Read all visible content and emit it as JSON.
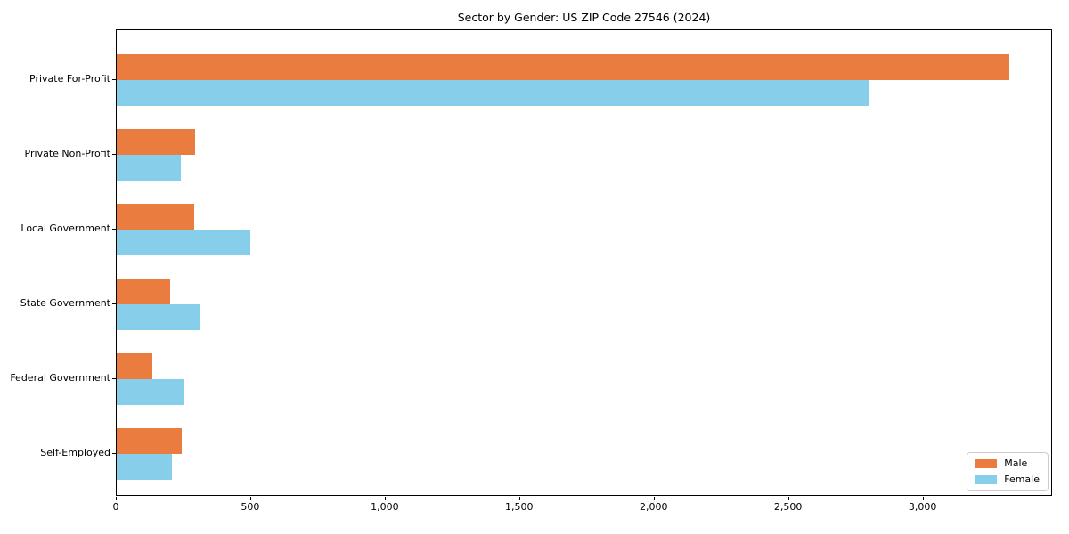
{
  "chart_data": {
    "type": "bar",
    "orientation": "horizontal",
    "title": "Sector by Gender: US ZIP Code 27546 (2024)",
    "categories": [
      "Private For-Profit",
      "Private Non-Profit",
      "Local Government",
      "State Government",
      "Federal Government",
      "Self-Employed"
    ],
    "series": [
      {
        "name": "Male",
        "color": "#E97C3E",
        "values": [
          3320,
          290,
          287,
          198,
          132,
          242
        ]
      },
      {
        "name": "Female",
        "color": "#87CEEB",
        "values": [
          2795,
          237,
          498,
          307,
          253,
          204
        ]
      }
    ],
    "xlabel": "",
    "ylabel": "",
    "xlim": [
      0,
      3475
    ],
    "xticks": [
      0,
      500,
      1000,
      1500,
      2000,
      2500,
      3000
    ],
    "xtick_labels": [
      "0",
      "500",
      "1,000",
      "1,500",
      "2,000",
      "2,500",
      "3,000"
    ],
    "grid": false,
    "legend": {
      "position": "lower-right",
      "entries": [
        "Male",
        "Female"
      ]
    }
  }
}
